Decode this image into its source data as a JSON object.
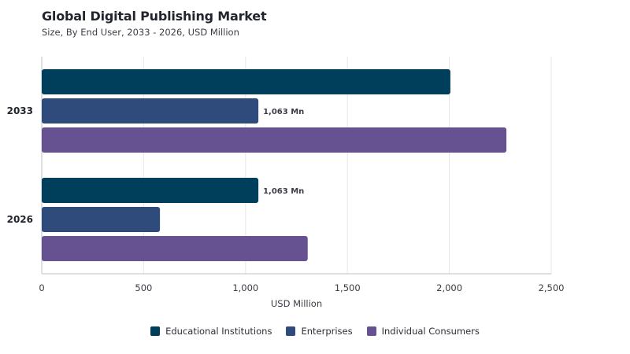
{
  "title": "Global Digital Publishing Market",
  "subtitle": "Size, By End User, 2033 - 2026, USD Million",
  "chart_data": {
    "type": "bar",
    "orientation": "horizontal",
    "title": "Global Digital Publishing Market",
    "subtitle": "Size, By End User, 2033 - 2026, USD Million",
    "xlabel": "USD Million",
    "ylabel": "",
    "categories": [
      "2033",
      "2026"
    ],
    "xlim": [
      0,
      2500
    ],
    "xticks": [
      0,
      500,
      1000,
      1500,
      2000,
      2500
    ],
    "xtick_labels": [
      "0",
      "500",
      "1,000",
      "1,500",
      "2,000",
      "2,500"
    ],
    "grid": true,
    "legend_position": "bottom",
    "series": [
      {
        "name": "Educational Institutions",
        "color": "#003f5c",
        "values": [
          2005,
          1063
        ]
      },
      {
        "name": "Enterprises",
        "color": "#2f4b7c",
        "values": [
          1063,
          580
        ]
      },
      {
        "name": "Individual Consumers",
        "color": "#665191",
        "values": [
          2280,
          1305
        ]
      }
    ],
    "annotations": [
      {
        "category": "2033",
        "series": "Enterprises",
        "text": "1,063 Mn"
      },
      {
        "category": "2026",
        "series": "Educational Institutions",
        "text": "1,063 Mn"
      }
    ]
  }
}
